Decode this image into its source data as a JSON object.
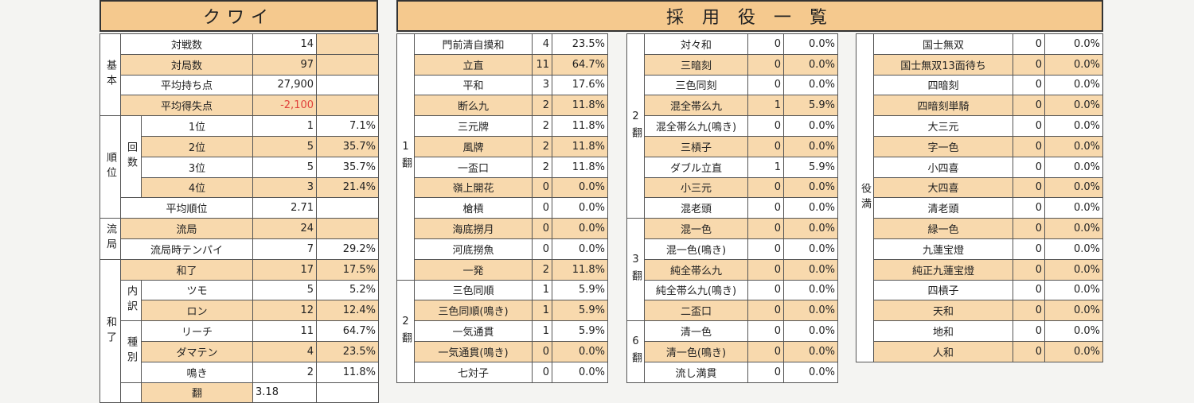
{
  "player_name": "クワイ",
  "yaku_title": "採 用 役 一 覧",
  "left": {
    "basic_group": "基本",
    "basic": [
      {
        "label": "対戦数",
        "value": "14",
        "pct": ""
      },
      {
        "label": "対局数",
        "value": "97",
        "pct": ""
      },
      {
        "label": "平均持ち点",
        "value": "27,900",
        "pct": ""
      },
      {
        "label": "平均得失点",
        "value": "-2,100",
        "pct": ""
      }
    ],
    "rank_group": "順位",
    "rank_sub": "回数",
    "ranks": [
      {
        "label": "1位",
        "value": "1",
        "pct": "7.1%"
      },
      {
        "label": "2位",
        "value": "5",
        "pct": "35.7%"
      },
      {
        "label": "3位",
        "value": "5",
        "pct": "35.7%"
      },
      {
        "label": "4位",
        "value": "3",
        "pct": "21.4%"
      }
    ],
    "avg_rank": {
      "label": "平均順位",
      "value": "2.71"
    },
    "draw_group": "流局",
    "draws": [
      {
        "label": "流局",
        "value": "24",
        "pct": ""
      },
      {
        "label": "流局時テンパイ",
        "value": "7",
        "pct": "29.2%"
      }
    ],
    "win_group": "和了",
    "win_total": {
      "label": "和了",
      "value": "17",
      "pct": "17.5%"
    },
    "breakdown_sub": "内訳",
    "breakdown": [
      {
        "label": "ツモ",
        "value": "5",
        "pct": "5.2%"
      },
      {
        "label": "ロン",
        "value": "12",
        "pct": "12.4%"
      }
    ],
    "kind_sub": "種別",
    "kinds": [
      {
        "label": "リーチ",
        "value": "11",
        "pct": "64.7%"
      },
      {
        "label": "ダマテン",
        "value": "4",
        "pct": "23.5%"
      },
      {
        "label": "鳴き",
        "value": "2",
        "pct": "11.8%"
      }
    ],
    "han": {
      "label": "翻",
      "value": "3.18"
    }
  },
  "col1": {
    "han1_label": "1翻",
    "han2_label": "2翻",
    "rows": [
      {
        "name": "門前清自摸和",
        "n": "4",
        "pct": "23.5%"
      },
      {
        "name": "立直",
        "n": "11",
        "pct": "64.7%"
      },
      {
        "name": "平和",
        "n": "3",
        "pct": "17.6%"
      },
      {
        "name": "断么九",
        "n": "2",
        "pct": "11.8%"
      },
      {
        "name": "三元牌",
        "n": "2",
        "pct": "11.8%"
      },
      {
        "name": "風牌",
        "n": "2",
        "pct": "11.8%"
      },
      {
        "name": "一盃口",
        "n": "2",
        "pct": "11.8%"
      },
      {
        "name": "嶺上開花",
        "n": "0",
        "pct": "0.0%"
      },
      {
        "name": "槍槓",
        "n": "0",
        "pct": "0.0%"
      },
      {
        "name": "海底撈月",
        "n": "0",
        "pct": "0.0%"
      },
      {
        "name": "河底撈魚",
        "n": "0",
        "pct": "0.0%"
      },
      {
        "name": "一発",
        "n": "2",
        "pct": "11.8%"
      },
      {
        "name": "三色同順",
        "n": "1",
        "pct": "5.9%"
      },
      {
        "name": "三色同順(鳴き)",
        "n": "1",
        "pct": "5.9%"
      },
      {
        "name": "一気通貫",
        "n": "1",
        "pct": "5.9%"
      },
      {
        "name": "一気通貫(鳴き)",
        "n": "0",
        "pct": "0.0%"
      },
      {
        "name": "七対子",
        "n": "0",
        "pct": "0.0%"
      }
    ]
  },
  "col2": {
    "han2_label": "2翻",
    "han3_label": "3翻",
    "han6_label": "6翻",
    "rows": [
      {
        "name": "対々和",
        "n": "0",
        "pct": "0.0%"
      },
      {
        "name": "三暗刻",
        "n": "0",
        "pct": "0.0%"
      },
      {
        "name": "三色同刻",
        "n": "0",
        "pct": "0.0%"
      },
      {
        "name": "混全帯么九",
        "n": "1",
        "pct": "5.9%"
      },
      {
        "name": "混全帯么九(鳴き)",
        "n": "0",
        "pct": "0.0%"
      },
      {
        "name": "三槓子",
        "n": "0",
        "pct": "0.0%"
      },
      {
        "name": "ダブル立直",
        "n": "1",
        "pct": "5.9%"
      },
      {
        "name": "小三元",
        "n": "0",
        "pct": "0.0%"
      },
      {
        "name": "混老頭",
        "n": "0",
        "pct": "0.0%"
      },
      {
        "name": "混一色",
        "n": "0",
        "pct": "0.0%"
      },
      {
        "name": "混一色(鳴き)",
        "n": "0",
        "pct": "0.0%"
      },
      {
        "name": "純全帯么九",
        "n": "0",
        "pct": "0.0%"
      },
      {
        "name": "純全帯么九(鳴き)",
        "n": "0",
        "pct": "0.0%"
      },
      {
        "name": "二盃口",
        "n": "0",
        "pct": "0.0%"
      },
      {
        "name": "清一色",
        "n": "0",
        "pct": "0.0%"
      },
      {
        "name": "清一色(鳴き)",
        "n": "0",
        "pct": "0.0%"
      },
      {
        "name": "流し満貫",
        "n": "0",
        "pct": "0.0%"
      }
    ]
  },
  "col3": {
    "yakuman_label": "役満",
    "rows": [
      {
        "name": "国士無双",
        "n": "0",
        "pct": "0.0%"
      },
      {
        "name": "国士無双13面待ち",
        "n": "0",
        "pct": "0.0%"
      },
      {
        "name": "四暗刻",
        "n": "0",
        "pct": "0.0%"
      },
      {
        "name": "四暗刻単騎",
        "n": "0",
        "pct": "0.0%"
      },
      {
        "name": "大三元",
        "n": "0",
        "pct": "0.0%"
      },
      {
        "name": "字一色",
        "n": "0",
        "pct": "0.0%"
      },
      {
        "name": "小四喜",
        "n": "0",
        "pct": "0.0%"
      },
      {
        "name": "大四喜",
        "n": "0",
        "pct": "0.0%"
      },
      {
        "name": "清老頭",
        "n": "0",
        "pct": "0.0%"
      },
      {
        "name": "緑一色",
        "n": "0",
        "pct": "0.0%"
      },
      {
        "name": "九蓮宝燈",
        "n": "0",
        "pct": "0.0%"
      },
      {
        "name": "純正九蓮宝燈",
        "n": "0",
        "pct": "0.0%"
      },
      {
        "name": "四槓子",
        "n": "0",
        "pct": "0.0%"
      },
      {
        "name": "天和",
        "n": "0",
        "pct": "0.0%"
      },
      {
        "name": "地和",
        "n": "0",
        "pct": "0.0%"
      },
      {
        "name": "人和",
        "n": "0",
        "pct": "0.0%"
      }
    ]
  },
  "colors": {
    "highlight": "#f8d9ad",
    "header": "#f5c98e",
    "negative": "#e0403a"
  }
}
